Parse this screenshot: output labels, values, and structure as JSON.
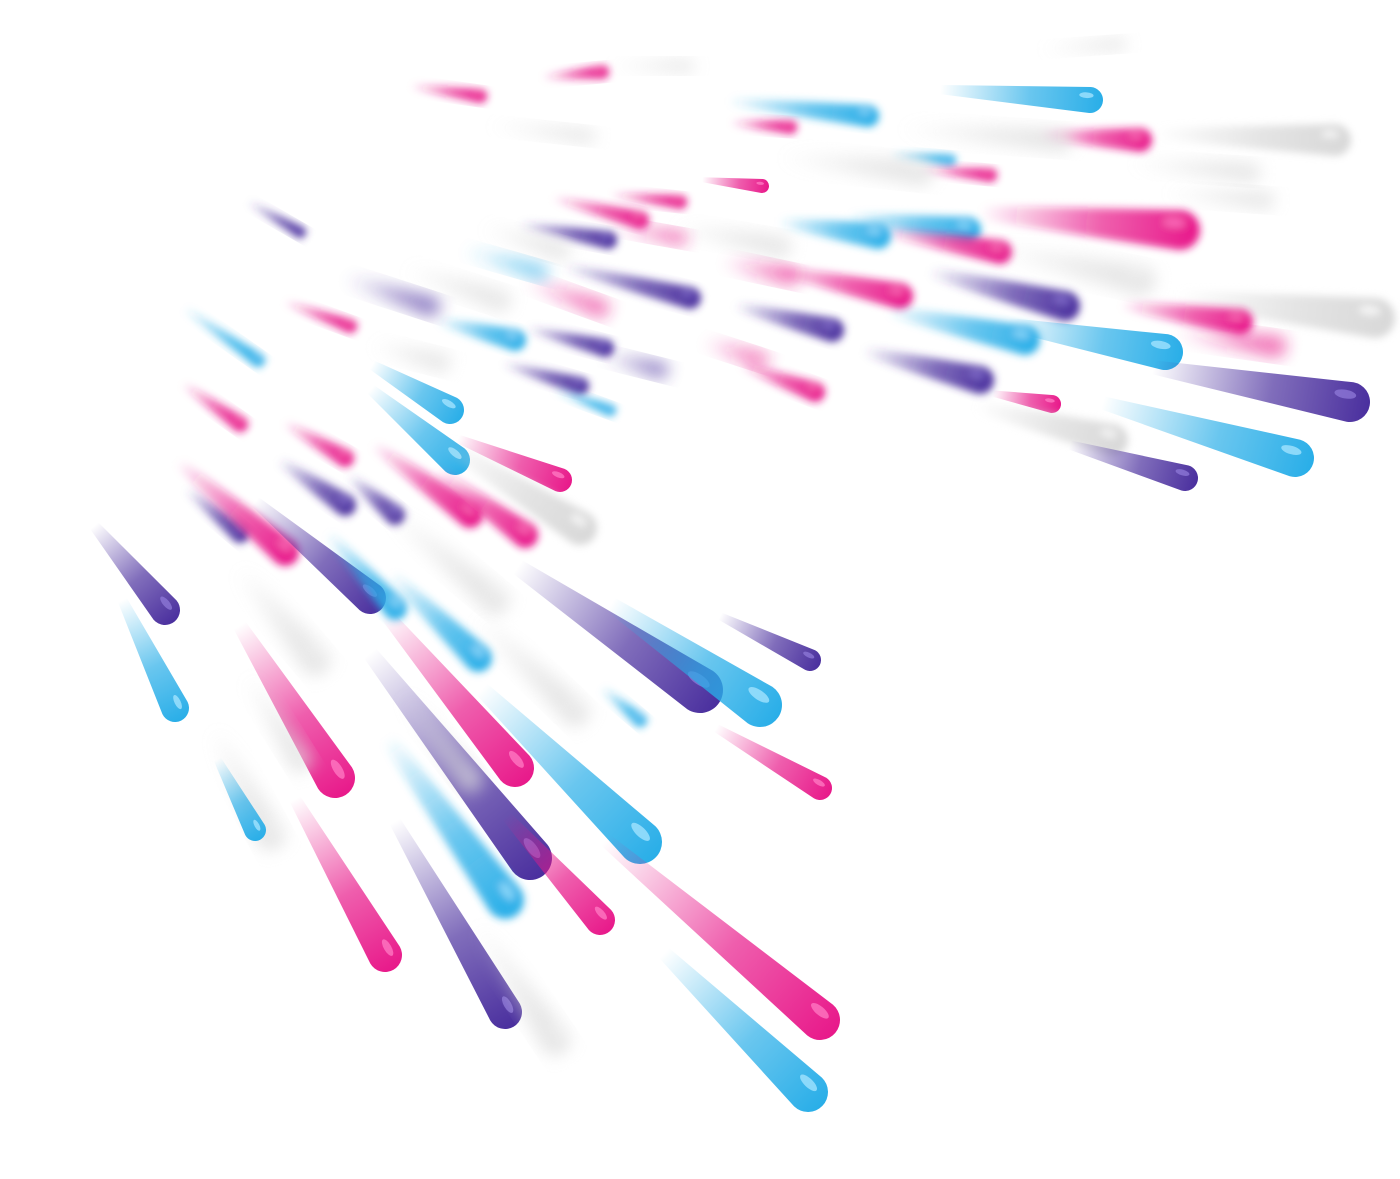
{
  "scene": {
    "background_color": "#ffffff",
    "palette": {
      "magenta": "#e8198a",
      "cyan": "#29aee8",
      "purple": "#4a2f9e",
      "white": "#d8d8d8"
    },
    "streak_color_order": [
      "magenta",
      "cyan",
      "purple",
      "white"
    ]
  }
}
